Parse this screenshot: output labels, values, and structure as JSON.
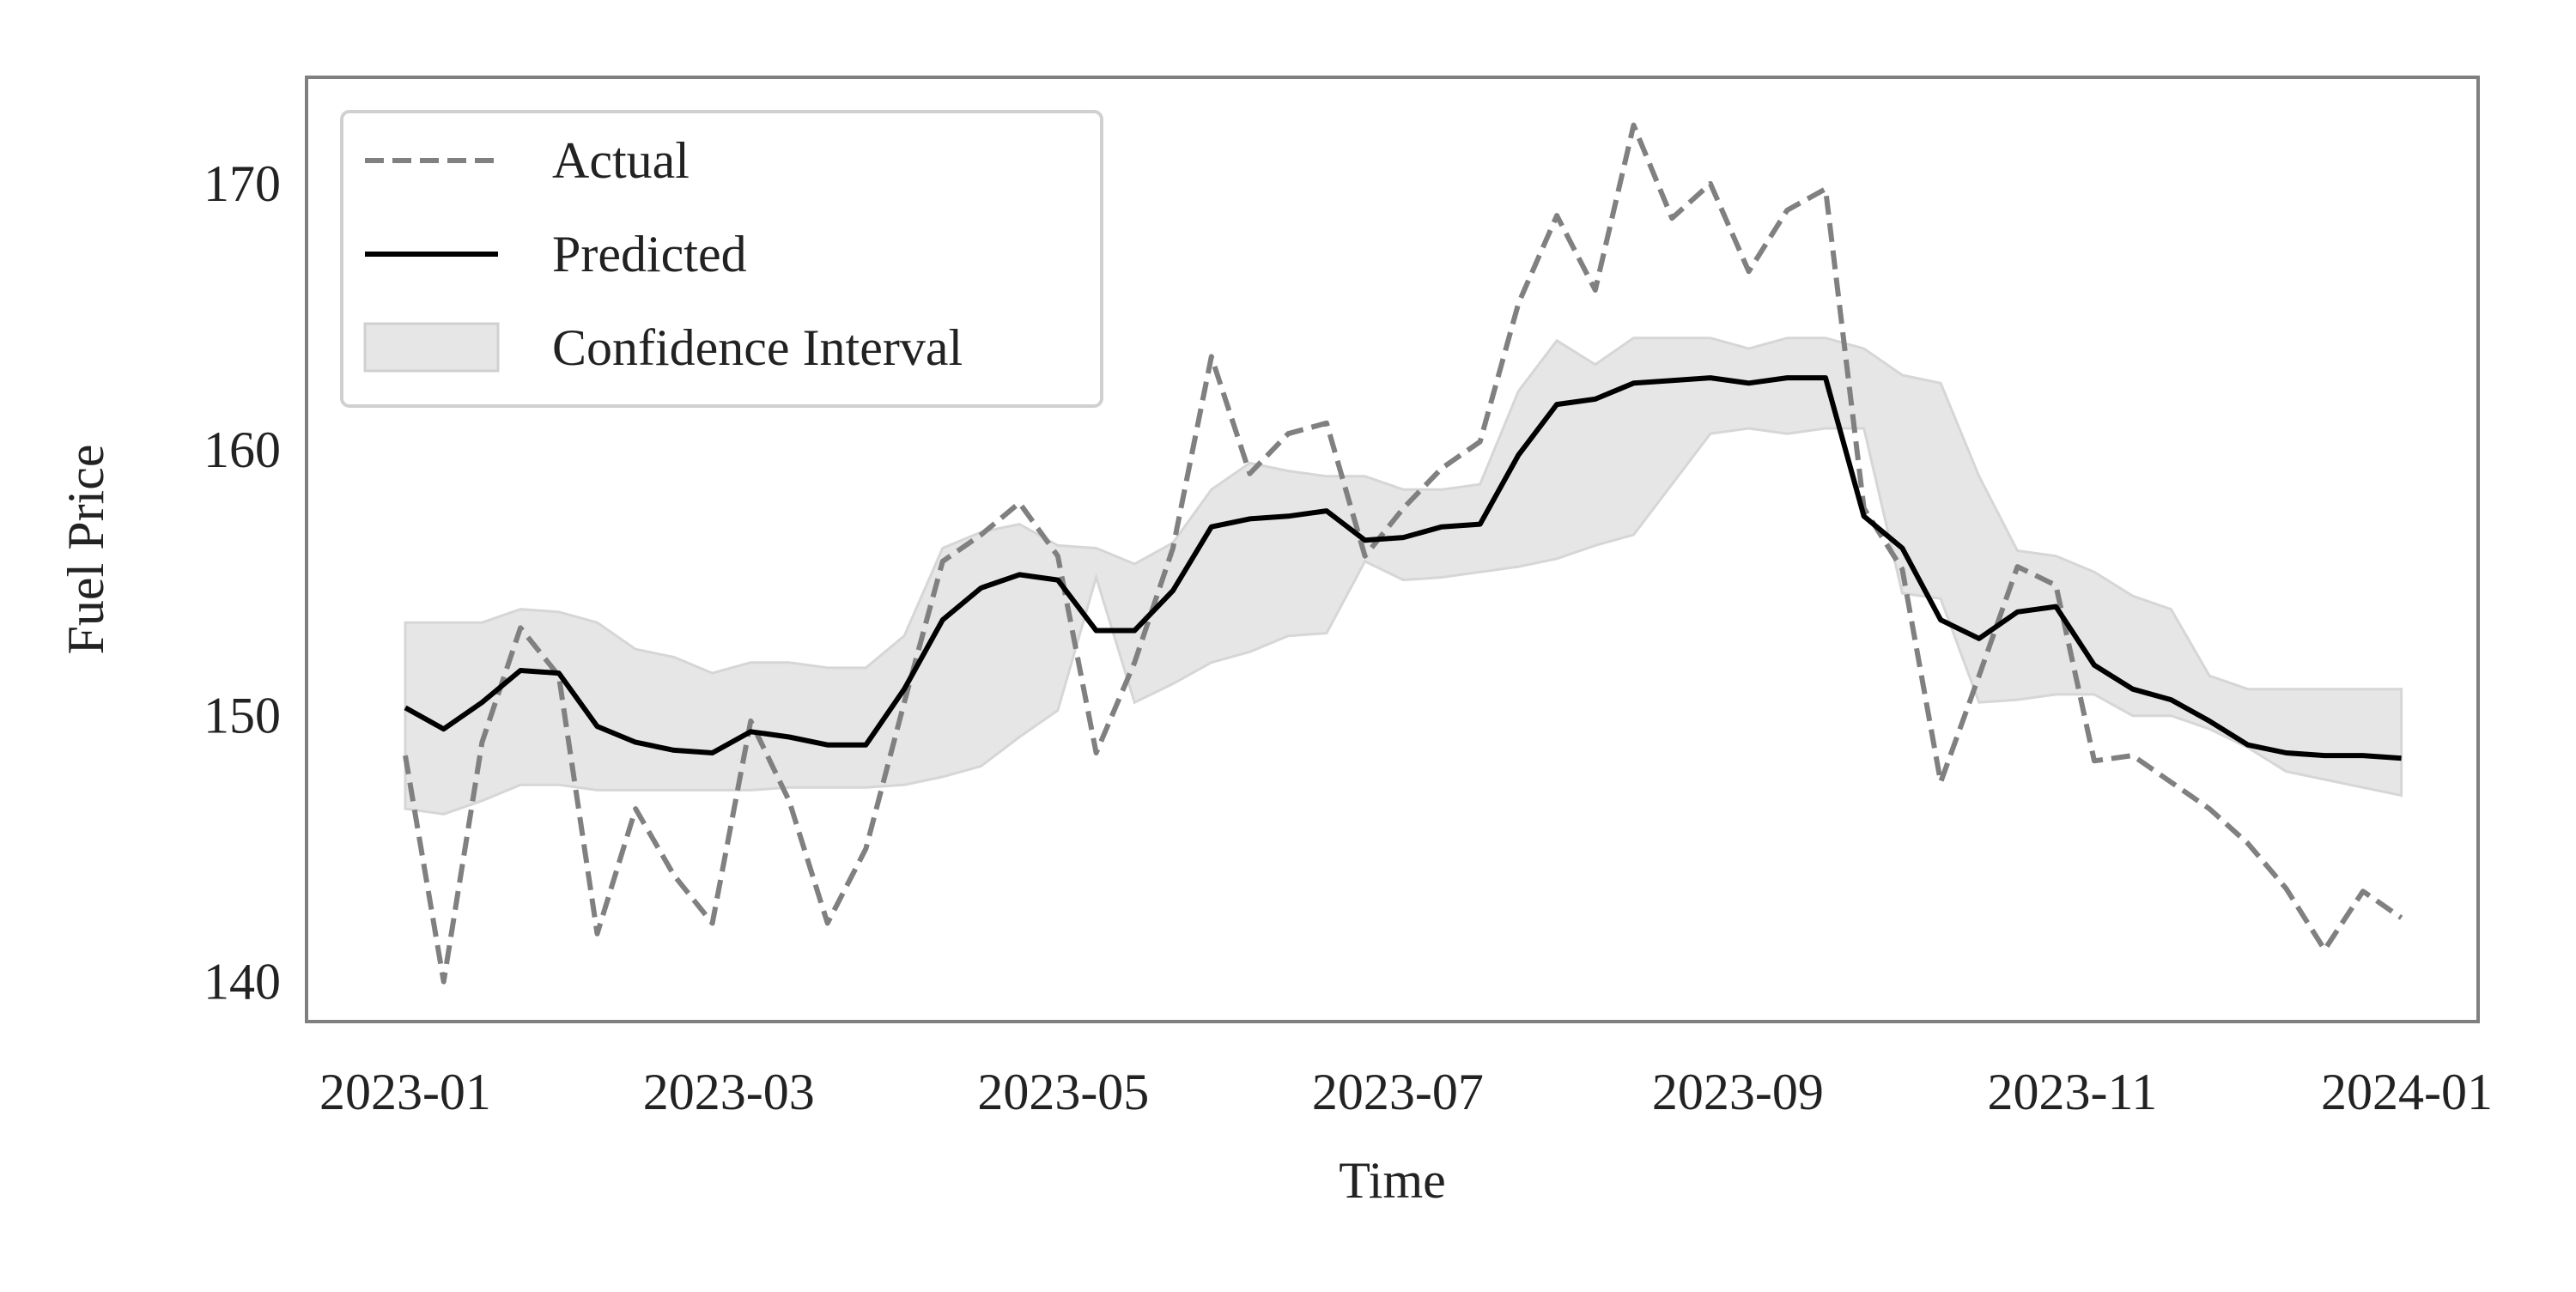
{
  "chart_data": {
    "type": "line",
    "title": "",
    "xlabel": "Time",
    "ylabel": "Fuel Price",
    "xlim": [
      "2022-12-14",
      "2024-01-14"
    ],
    "ylim": [
      138.5,
      174
    ],
    "x_ticks": [
      "2023-01",
      "2023-03",
      "2023-05",
      "2023-07",
      "2023-09",
      "2023-11",
      "2024-01"
    ],
    "y_ticks": [
      140,
      150,
      160,
      170
    ],
    "grid": false,
    "legend": {
      "position": "top-left",
      "entries": [
        "Actual",
        "Predicted",
        "Confidence Interval"
      ]
    },
    "dates": [
      "2023-01-01",
      "2023-01-08",
      "2023-01-15",
      "2023-01-22",
      "2023-01-29",
      "2023-02-05",
      "2023-02-12",
      "2023-02-19",
      "2023-02-26",
      "2023-03-05",
      "2023-03-12",
      "2023-03-19",
      "2023-03-26",
      "2023-04-02",
      "2023-04-09",
      "2023-04-16",
      "2023-04-23",
      "2023-04-30",
      "2023-05-07",
      "2023-05-14",
      "2023-05-21",
      "2023-05-28",
      "2023-06-04",
      "2023-06-11",
      "2023-06-18",
      "2023-06-25",
      "2023-07-02",
      "2023-07-09",
      "2023-07-16",
      "2023-07-23",
      "2023-07-30",
      "2023-08-06",
      "2023-08-13",
      "2023-08-20",
      "2023-08-27",
      "2023-09-03",
      "2023-09-10",
      "2023-09-17",
      "2023-09-24",
      "2023-10-01",
      "2023-10-08",
      "2023-10-15",
      "2023-10-22",
      "2023-10-29",
      "2023-11-05",
      "2023-11-12",
      "2023-11-19",
      "2023-11-26",
      "2023-12-03",
      "2023-12-10",
      "2023-12-17",
      "2023-12-24",
      "2023-12-31"
    ],
    "series": [
      {
        "name": "Actual",
        "color": "#808080",
        "style": "dashed",
        "values": [
          148.5,
          140.0,
          149.0,
          153.3,
          151.5,
          141.8,
          146.5,
          144.0,
          142.2,
          149.8,
          146.8,
          142.2,
          145.0,
          150.5,
          155.8,
          156.8,
          158.0,
          156.0,
          148.6,
          152.0,
          156.3,
          163.5,
          159.1,
          160.6,
          161.0,
          156.0,
          157.8,
          159.3,
          160.3,
          165.5,
          168.8,
          166.0,
          172.2,
          168.7,
          170.0,
          166.7,
          169.0,
          169.8,
          157.8,
          155.5,
          147.5,
          151.5,
          155.6,
          154.9,
          148.3,
          148.5,
          147.5,
          146.5,
          145.2,
          143.5,
          141.2,
          143.4,
          142.4
        ]
      },
      {
        "name": "Predicted",
        "color": "#000000",
        "style": "solid",
        "values": [
          150.3,
          149.5,
          150.5,
          151.7,
          151.6,
          149.6,
          149.0,
          148.7,
          148.6,
          149.4,
          149.2,
          148.9,
          148.9,
          151.0,
          153.6,
          154.8,
          155.3,
          155.1,
          153.2,
          153.2,
          154.7,
          157.1,
          157.4,
          157.5,
          157.7,
          156.6,
          156.7,
          157.1,
          157.2,
          159.8,
          161.7,
          161.9,
          162.5,
          162.6,
          162.7,
          162.5,
          162.7,
          162.7,
          157.5,
          156.3,
          153.6,
          152.9,
          153.9,
          154.1,
          151.9,
          151.0,
          150.6,
          149.8,
          148.9,
          148.6,
          148.5,
          148.5,
          148.4
        ]
      },
      {
        "name": "Confidence Interval",
        "color": "#e6e6e6",
        "style": "band",
        "lower": [
          146.5,
          146.3,
          146.8,
          147.4,
          147.4,
          147.2,
          147.2,
          147.2,
          147.2,
          147.2,
          147.3,
          147.3,
          147.3,
          147.4,
          147.7,
          148.1,
          149.2,
          150.2,
          155.2,
          150.5,
          151.2,
          152.0,
          152.4,
          153.0,
          153.1,
          155.8,
          155.1,
          155.2,
          155.4,
          155.6,
          155.9,
          156.4,
          156.8,
          158.7,
          160.6,
          160.8,
          160.6,
          160.8,
          160.8,
          154.6,
          154.4,
          150.5,
          150.6,
          150.8,
          150.8,
          150.0,
          150.0,
          149.5,
          148.8,
          147.9,
          147.6,
          147.3,
          147.0
        ],
        "upper": [
          153.5,
          153.5,
          153.5,
          154.0,
          153.9,
          153.5,
          152.5,
          152.2,
          151.6,
          152.0,
          152.0,
          151.8,
          151.8,
          153.0,
          156.3,
          156.9,
          157.2,
          156.4,
          156.3,
          155.7,
          156.5,
          158.5,
          159.5,
          159.2,
          159.0,
          159.0,
          158.5,
          158.5,
          158.7,
          162.2,
          164.1,
          163.2,
          164.2,
          164.2,
          164.2,
          163.8,
          164.2,
          164.2,
          163.8,
          162.8,
          162.5,
          159.0,
          156.2,
          156.0,
          155.4,
          154.5,
          154.0,
          151.5,
          151.0,
          151.0,
          151.0,
          151.0,
          151.0
        ]
      }
    ]
  }
}
